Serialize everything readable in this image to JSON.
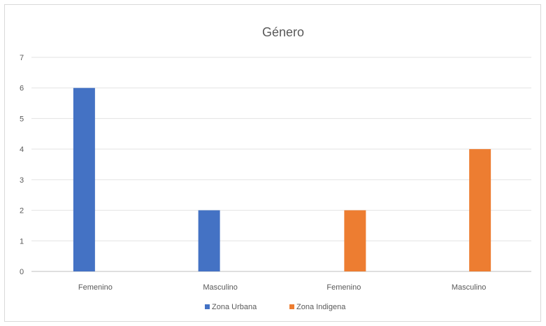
{
  "chart_data": {
    "type": "bar",
    "title": "Género",
    "xlabel": "",
    "ylabel": "",
    "ylim": [
      0,
      7
    ],
    "yticks": [
      0,
      1,
      2,
      3,
      4,
      5,
      6,
      7
    ],
    "grid": true,
    "legend_position": "bottom",
    "categories": [
      "Femenino",
      "Masculino",
      "Femenino",
      "Masculino"
    ],
    "series": [
      {
        "name": "Zona Urbana",
        "color": "#4472C4",
        "values": [
          6,
          2,
          null,
          null
        ]
      },
      {
        "name": "Zona Indigena",
        "color": "#ED7D31",
        "values": [
          null,
          null,
          2,
          4
        ]
      }
    ]
  }
}
